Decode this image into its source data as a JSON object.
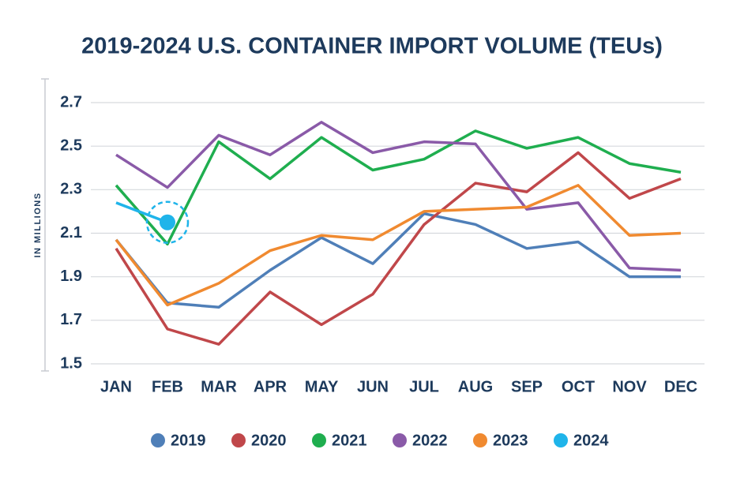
{
  "chart_data": {
    "type": "line",
    "title": "2019-2024 U.S. CONTAINER IMPORT VOLUME (TEUs)",
    "y_label": "IN MILLIONS",
    "categories": [
      "JAN",
      "FEB",
      "MAR",
      "APR",
      "MAY",
      "JUN",
      "JUL",
      "AUG",
      "SEP",
      "OCT",
      "NOV",
      "DEC"
    ],
    "series": [
      {
        "name": "2019",
        "color": "#4f7fb8",
        "values": [
          2.07,
          1.78,
          1.76,
          1.93,
          2.08,
          1.96,
          2.19,
          2.14,
          2.03,
          2.06,
          1.9,
          1.9
        ]
      },
      {
        "name": "2020",
        "color": "#c0474a",
        "values": [
          2.03,
          1.66,
          1.59,
          1.83,
          1.68,
          1.82,
          2.14,
          2.33,
          2.29,
          2.47,
          2.26,
          2.35
        ]
      },
      {
        "name": "2021",
        "color": "#1fae4f",
        "values": [
          2.32,
          2.05,
          2.52,
          2.35,
          2.54,
          2.39,
          2.44,
          2.57,
          2.49,
          2.54,
          2.42,
          2.38
        ]
      },
      {
        "name": "2022",
        "color": "#8a5aa8",
        "values": [
          2.46,
          2.31,
          2.55,
          2.46,
          2.61,
          2.47,
          2.52,
          2.51,
          2.21,
          2.24,
          1.94,
          1.93
        ]
      },
      {
        "name": "2023",
        "color": "#f08a30",
        "values": [
          2.07,
          1.77,
          1.87,
          2.02,
          2.09,
          2.07,
          2.2,
          2.21,
          2.22,
          2.32,
          2.09,
          2.1
        ]
      },
      {
        "name": "2024",
        "color": "#1fb4ea",
        "values": [
          2.24,
          2.15,
          null,
          null,
          null,
          null,
          null,
          null,
          null,
          null,
          null,
          null
        ]
      }
    ],
    "ylim": [
      1.5,
      2.7
    ],
    "yticks": [
      1.5,
      1.7,
      1.9,
      2.1,
      2.3,
      2.5,
      2.7
    ],
    "grid": true,
    "legend": "bottom"
  }
}
